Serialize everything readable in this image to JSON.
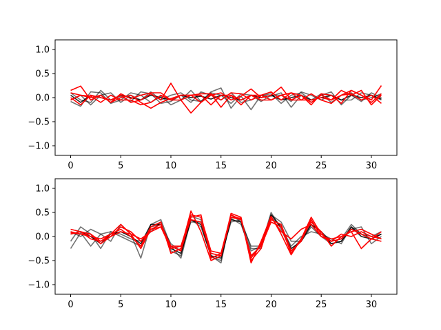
{
  "chart_data": [
    {
      "type": "line",
      "xlim": [
        -1.55,
        32.55
      ],
      "ylim": [
        -1.2,
        1.2
      ],
      "x_ticks": [
        0,
        5,
        10,
        15,
        20,
        25,
        30
      ],
      "y_ticks": [
        -1.0,
        -0.5,
        0.0,
        0.5,
        1.0
      ],
      "x_tick_labels": [
        "0",
        "5",
        "10",
        "15",
        "20",
        "25",
        "30"
      ],
      "y_tick_labels": [
        "−1.0",
        "−0.5",
        "0.0",
        "0.5",
        "1.0"
      ],
      "grid": false,
      "colors": {
        "reference": "#000000",
        "highlight": "#ff0000"
      },
      "series": [
        {
          "color": "#000000",
          "opacity": 0.55,
          "values": [
            -0.08,
            -0.18,
            0.12,
            0.1,
            -0.12,
            -0.05,
            0.1,
            0.05,
            -0.1,
            0.03,
            -0.15,
            -0.05,
            0.15,
            -0.08,
            0.12,
            0.2,
            -0.22,
            0.03,
            -0.25,
            0.05,
            0.03,
            0.1,
            -0.2,
            0.05,
            -0.1,
            0.05,
            0.12,
            -0.15,
            0.05,
            -0.08,
            0.1,
            0.0
          ]
        },
        {
          "color": "#000000",
          "opacity": 0.55,
          "values": [
            0.1,
            -0.05,
            -0.1,
            0.15,
            -0.05,
            0.03,
            -0.08,
            0.12,
            0.08,
            -0.12,
            -0.08,
            0.05,
            -0.1,
            0.12,
            0.05,
            -0.05,
            0.1,
            -0.1,
            -0.05,
            0.05,
            0.08,
            -0.12,
            0.05,
            0.1,
            -0.05,
            0.08,
            -0.1,
            0.05,
            0.1,
            -0.05,
            0.0,
            0.08
          ]
        },
        {
          "color": "#000000",
          "opacity": 0.55,
          "values": [
            -0.05,
            0.05,
            -0.15,
            0.05,
            0.1,
            -0.1,
            0.05,
            -0.05,
            0.12,
            -0.05,
            0.05,
            0.1,
            -0.05,
            -0.08,
            0.1,
            0.05,
            -0.12,
            0.08,
            0.05,
            -0.08,
            0.05,
            0.05,
            -0.08,
            0.12,
            0.05,
            -0.05,
            0.05,
            -0.05,
            -0.05,
            0.1,
            0.05,
            -0.05
          ]
        },
        {
          "color": "#000000",
          "opacity": 0.85,
          "values": [
            0.05,
            -0.1,
            0.05,
            0.0,
            -0.05,
            0.05,
            0.0,
            -0.05,
            0.05,
            0.0,
            -0.05,
            0.05,
            0.0,
            0.03,
            -0.03,
            0.05,
            0.0,
            -0.05,
            0.05,
            0.0,
            0.05,
            -0.05,
            0.0,
            0.05,
            -0.05,
            0.0,
            0.05,
            -0.05,
            0.05,
            0.0,
            0.05,
            -0.03
          ]
        },
        {
          "color": "#ff0000",
          "opacity": 1,
          "values": [
            0.15,
            0.24,
            -0.05,
            0.05,
            -0.1,
            0.08,
            -0.02,
            0.05,
            0.1,
            0.1,
            -0.05,
            0.05,
            0.05,
            0.08,
            0.08,
            -0.05,
            0.1,
            0.08,
            -0.05,
            0.05,
            0.12,
            -0.05,
            0.1,
            0.05,
            -0.15,
            0.08,
            0.05,
            -0.12,
            0.15,
            0.05,
            -0.05,
            0.25
          ]
        },
        {
          "color": "#ff0000",
          "opacity": 1,
          "values": [
            0.0,
            -0.15,
            0.05,
            0.0,
            -0.05,
            0.05,
            -0.1,
            -0.05,
            0.08,
            -0.05,
            0.3,
            -0.05,
            -0.32,
            -0.1,
            0.08,
            -0.2,
            0.05,
            -0.05,
            0.05,
            -0.05,
            -0.05,
            0.05,
            0.1,
            -0.05,
            0.08,
            -0.05,
            -0.12,
            0.05,
            0.15,
            0.05,
            -0.1,
            0.08
          ]
        },
        {
          "color": "#ff0000",
          "opacity": 1,
          "values": [
            -0.05,
            0.05,
            0.03,
            -0.1,
            0.05,
            -0.05,
            -0.05,
            -0.15,
            -0.1,
            0.05,
            -0.05,
            -0.05,
            0.05,
            0.05,
            -0.15,
            0.05,
            0.05,
            -0.15,
            0.05,
            0.05,
            -0.05,
            0.05,
            -0.05,
            0.05,
            -0.1,
            0.05,
            -0.05,
            0.15,
            0.05,
            0.15,
            -0.15,
            0.05
          ]
        },
        {
          "color": "#ff0000",
          "opacity": 1,
          "values": [
            0.1,
            0.05,
            0.0,
            0.05,
            -0.1,
            0.0,
            0.05,
            -0.1,
            -0.22,
            -0.1,
            -0.02,
            0.05,
            0.05,
            -0.1,
            0.05,
            0.1,
            -0.05,
            0.03,
            0.18,
            0.0,
            0.05,
            0.22,
            -0.05,
            -0.05,
            -0.05,
            0.0,
            -0.05,
            0.05,
            0.08,
            -0.05,
            0.05,
            -0.12
          ]
        }
      ]
    },
    {
      "type": "line",
      "xlim": [
        -1.55,
        32.55
      ],
      "ylim": [
        -1.2,
        1.2
      ],
      "x_ticks": [
        0,
        5,
        10,
        15,
        20,
        25,
        30
      ],
      "y_ticks": [
        -1.0,
        -0.5,
        0.0,
        0.5,
        1.0
      ],
      "x_tick_labels": [
        "0",
        "5",
        "10",
        "15",
        "20",
        "25",
        "30"
      ],
      "y_tick_labels": [
        "−1.0",
        "−0.5",
        "0.0",
        "0.5",
        "1.0"
      ],
      "grid": false,
      "colors": {
        "reference": "#000000",
        "highlight": "#ff0000"
      },
      "series": [
        {
          "color": "#000000",
          "opacity": 0.55,
          "values": [
            -0.25,
            0.08,
            -0.2,
            0.05,
            -0.1,
            0.25,
            0.05,
            -0.45,
            0.25,
            0.35,
            -0.2,
            -0.45,
            0.35,
            0.2,
            -0.4,
            -0.55,
            0.45,
            0.3,
            -0.2,
            -0.2,
            0.5,
            0.15,
            -0.3,
            -0.05,
            0.25,
            0.1,
            -0.1,
            -0.05,
            0.25,
            0.05,
            -0.05,
            0.05
          ]
        },
        {
          "color": "#000000",
          "opacity": 0.55,
          "values": [
            -0.1,
            0.2,
            0.05,
            -0.25,
            0.1,
            0.05,
            -0.05,
            -0.1,
            0.1,
            0.3,
            -0.3,
            -0.4,
            0.42,
            0.35,
            -0.42,
            -0.5,
            0.38,
            0.25,
            -0.3,
            -0.2,
            0.45,
            0.3,
            -0.1,
            -0.1,
            0.2,
            0.0,
            -0.15,
            -0.1,
            0.15,
            0.2,
            -0.15,
            0.0
          ]
        },
        {
          "color": "#000000",
          "opacity": 0.55,
          "values": [
            0.1,
            0.0,
            0.15,
            0.05,
            0.1,
            0.0,
            -0.1,
            -0.2,
            0.2,
            0.25,
            -0.15,
            -0.3,
            0.3,
            0.3,
            -0.35,
            -0.4,
            0.3,
            0.35,
            -0.25,
            -0.25,
            0.4,
            0.2,
            -0.2,
            0.0,
            0.1,
            0.05,
            -0.05,
            -0.15,
            0.2,
            0.05,
            0.0,
            0.1
          ]
        },
        {
          "color": "#000000",
          "opacity": 0.85,
          "values": [
            0.05,
            0.1,
            0.0,
            -0.15,
            0.05,
            0.1,
            0.0,
            -0.15,
            0.25,
            0.25,
            -0.25,
            -0.35,
            0.35,
            0.25,
            -0.4,
            -0.45,
            0.35,
            0.3,
            -0.4,
            -0.2,
            0.45,
            0.2,
            -0.25,
            -0.1,
            0.25,
            0.1,
            -0.15,
            -0.1,
            0.2,
            0.0,
            -0.05,
            0.05
          ]
        },
        {
          "color": "#ff0000",
          "opacity": 1,
          "values": [
            0.15,
            0.1,
            -0.05,
            -0.1,
            0.05,
            0.15,
            0.0,
            -0.2,
            0.2,
            0.3,
            -0.35,
            -0.25,
            0.53,
            0.1,
            -0.5,
            -0.4,
            0.48,
            0.4,
            -0.55,
            -0.1,
            0.42,
            0.05,
            -0.38,
            -0.05,
            0.4,
            0.05,
            -0.1,
            -0.05,
            0.15,
            0.05,
            -0.05,
            -0.1
          ]
        },
        {
          "color": "#ff0000",
          "opacity": 1,
          "values": [
            0.1,
            0.05,
            0.0,
            -0.05,
            0.05,
            0.25,
            0.05,
            -0.05,
            0.1,
            0.2,
            -0.25,
            -0.2,
            0.45,
            0.4,
            -0.3,
            -0.35,
            0.45,
            0.35,
            -0.45,
            -0.15,
            0.35,
            0.25,
            -0.3,
            -0.1,
            0.35,
            0.0,
            -0.05,
            0.0,
            0.1,
            -0.25,
            -0.05,
            0.1
          ]
        },
        {
          "color": "#ff0000",
          "opacity": 1,
          "values": [
            0.08,
            0.05,
            0.05,
            -0.15,
            0.0,
            0.2,
            0.1,
            -0.1,
            0.15,
            0.25,
            -0.2,
            -0.3,
            0.4,
            0.45,
            -0.45,
            -0.35,
            0.4,
            0.38,
            -0.5,
            -0.25,
            0.4,
            0.1,
            -0.05,
            0.15,
            0.25,
            0.0,
            -0.1,
            0.05,
            0.0,
            0.1,
            0.0,
            -0.05
          ]
        },
        {
          "color": "#ff0000",
          "opacity": 1,
          "values": [
            0.05,
            0.1,
            0.05,
            -0.1,
            0.0,
            0.1,
            0.05,
            -0.25,
            0.15,
            0.2,
            -0.2,
            -0.2,
            0.35,
            0.3,
            -0.35,
            -0.4,
            0.4,
            0.35,
            -0.4,
            -0.2,
            0.3,
            0.2,
            -0.35,
            -0.05,
            0.3,
            0.1,
            -0.2,
            0.0,
            0.1,
            0.15,
            0.05,
            -0.05
          ]
        }
      ]
    }
  ]
}
